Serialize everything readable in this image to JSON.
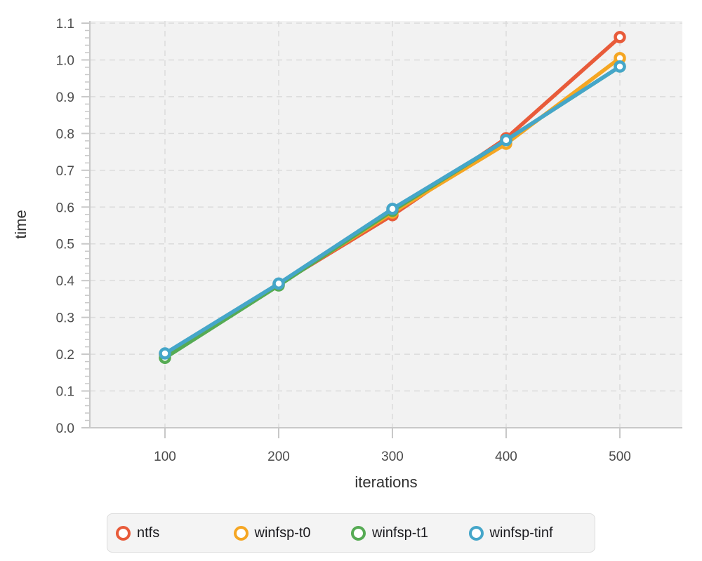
{
  "chart_data": {
    "type": "line",
    "title": "",
    "xlabel": "iterations",
    "ylabel": "time",
    "x": [
      100,
      200,
      300,
      400,
      500
    ],
    "x_ticks": [
      "100",
      "200",
      "300",
      "400",
      "500"
    ],
    "y_ticks": [
      "0.0",
      "0.1",
      "0.2",
      "0.3",
      "0.4",
      "0.5",
      "0.6",
      "0.7",
      "0.8",
      "0.9",
      "1.0",
      "1.1"
    ],
    "xlim": [
      100,
      500
    ],
    "ylim": [
      0.0,
      1.1
    ],
    "y_minor_step": 0.02,
    "grid": "dashed",
    "legend_position": "bottom",
    "series": [
      {
        "name": "ntfs",
        "color": "#E85B3A",
        "values": [
          0.2,
          0.39,
          0.578,
          0.787,
          1.062
        ]
      },
      {
        "name": "winfsp-t0",
        "color": "#F5A623",
        "values": [
          0.198,
          0.39,
          0.585,
          0.772,
          1.005
        ]
      },
      {
        "name": "winfsp-t1",
        "color": "#56AB54",
        "values": [
          0.19,
          0.387,
          0.59,
          0.782,
          0.982
        ]
      },
      {
        "name": "winfsp-tinf",
        "color": "#45A6C9",
        "values": [
          0.202,
          0.392,
          0.595,
          0.782,
          0.982
        ]
      }
    ]
  },
  "colors": {
    "panel_bg": "#f2f2f2",
    "gridline": "#dbdbdb",
    "axis_line": "#c8c8c8",
    "tick_mark": "#c8c8c8",
    "tick_label": "#4d4d4d",
    "axis_title": "#303030",
    "legend_bg": "#f4f4f4",
    "legend_border": "#dcdcdc",
    "legend_text": "#1b1b1f",
    "marker_fill": "#ffffff"
  }
}
